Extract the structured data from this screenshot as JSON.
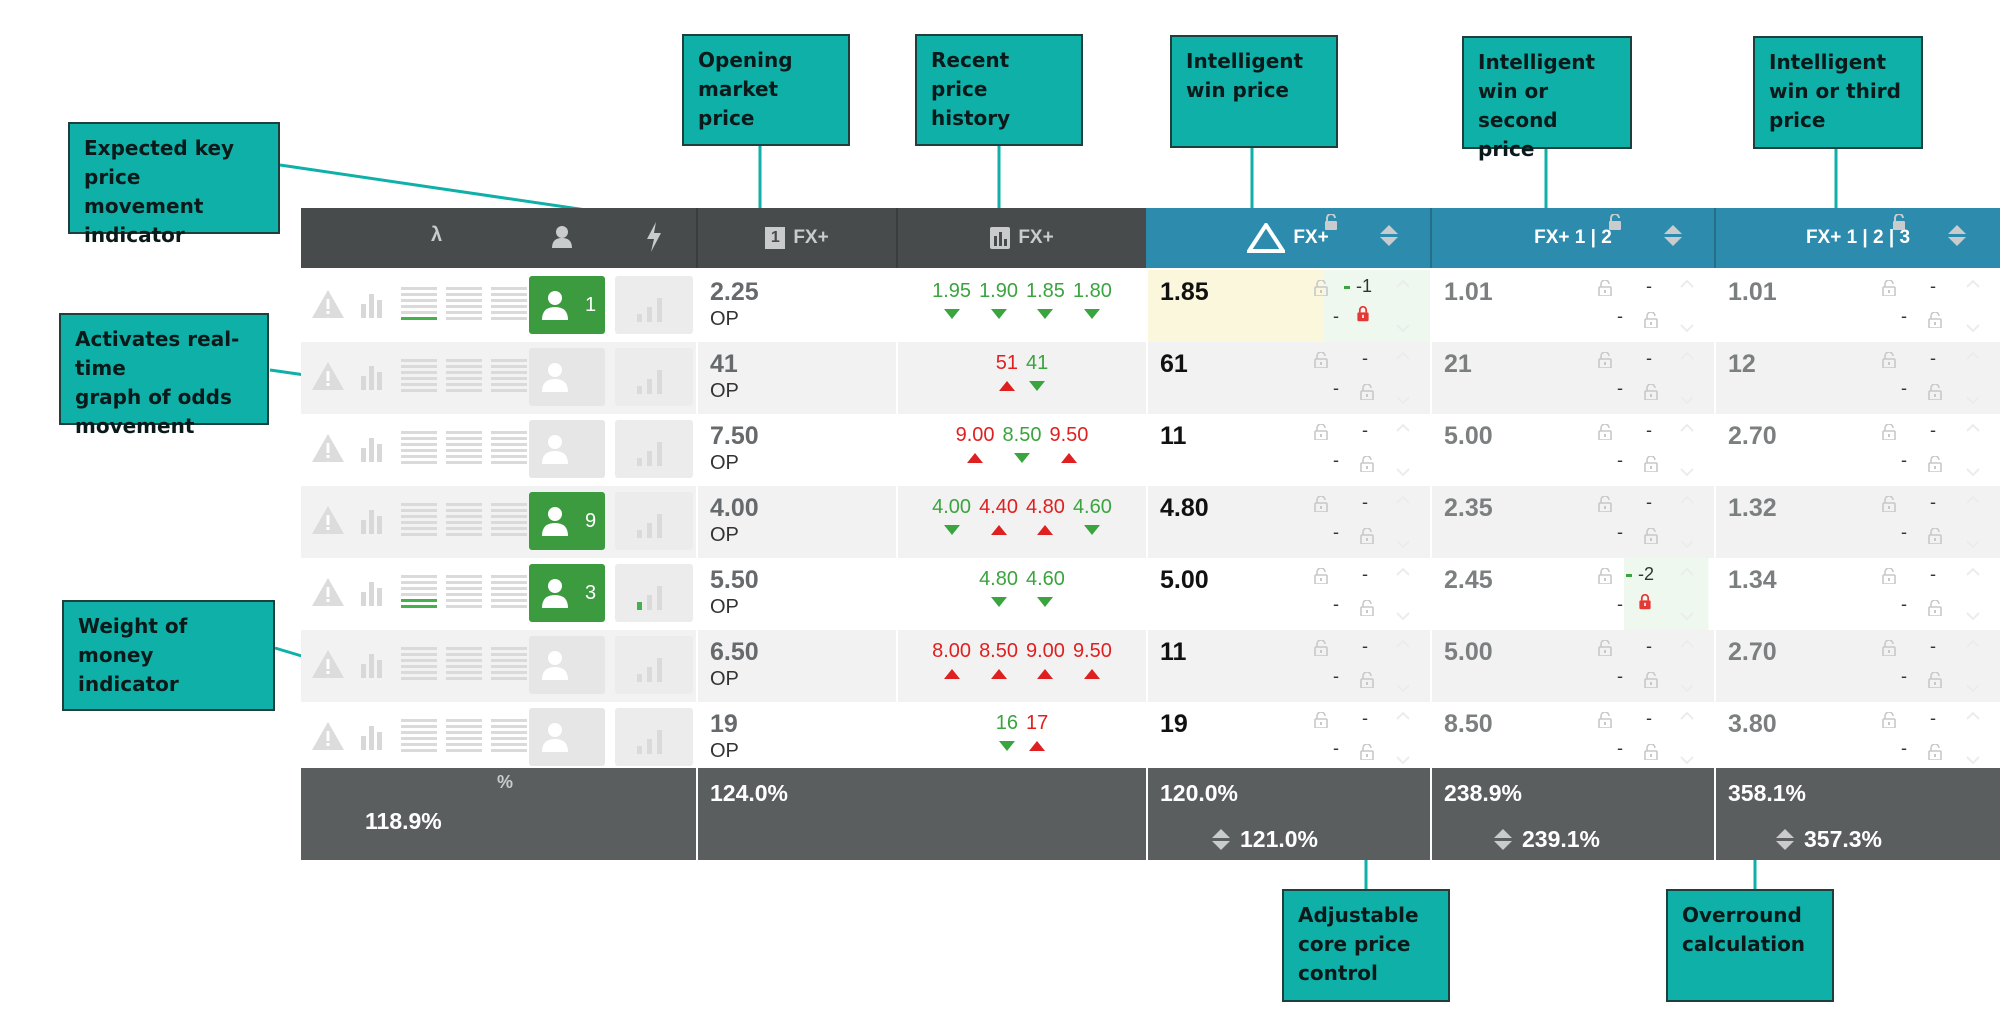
{
  "callouts": [
    {
      "key": "key-price-movement",
      "text": "Expected key price\nmovement indicator"
    },
    {
      "key": "realtime-graph",
      "text": "Activates real-time\ngraph of odds\nmovement"
    },
    {
      "key": "weight-of-money",
      "text": "Weight of money\nindicator"
    },
    {
      "key": "opening-market-price",
      "text": "Opening\nmarket price"
    },
    {
      "key": "recent-price-history",
      "text": "Recent price\nhistory"
    },
    {
      "key": "intelligent-win-price",
      "text": "Intelligent\nwin price"
    },
    {
      "key": "win-or-second",
      "text": "Intelligent\nwin or second\nprice"
    },
    {
      "key": "win-or-third",
      "text": "Intelligent\nwin or third\nprice"
    },
    {
      "key": "adjustable-core",
      "text": "Adjustable\ncore price\ncontrol"
    },
    {
      "key": "overround",
      "text": "Overround\ncalculation"
    }
  ],
  "headers": {
    "lambda": "λ",
    "op_badge": "1",
    "op_label": "FX+",
    "history_label": "FX+",
    "win_label": "FX+",
    "second_label": "FX+ 1 | 2",
    "third_label": "FX+ 1 | 2 | 3"
  },
  "rows": [
    {
      "tips": "1",
      "op": "2.25",
      "op_label": "OP",
      "history": [
        {
          "v": "1.95",
          "dir": "down"
        },
        {
          "v": "1.90",
          "dir": "down"
        },
        {
          "v": "1.85",
          "dir": "down"
        },
        {
          "v": "1.80",
          "dir": "down"
        }
      ],
      "win": "1.85",
      "second": "1.01",
      "third": "1.01",
      "win_adj": "-1",
      "second_adj": ""
    },
    {
      "tips": "",
      "op": "41",
      "op_label": "OP",
      "history": [
        {
          "v": "51",
          "dir": "up"
        },
        {
          "v": "41",
          "dir": "down"
        }
      ],
      "win": "61",
      "second": "21",
      "third": "12",
      "win_adj": "",
      "second_adj": ""
    },
    {
      "tips": "",
      "op": "7.50",
      "op_label": "OP",
      "history": [
        {
          "v": "9.00",
          "dir": "up"
        },
        {
          "v": "8.50",
          "dir": "down"
        },
        {
          "v": "9.50",
          "dir": "up"
        }
      ],
      "win": "11",
      "second": "5.00",
      "third": "2.70",
      "win_adj": "",
      "second_adj": ""
    },
    {
      "tips": "9",
      "op": "4.00",
      "op_label": "OP",
      "history": [
        {
          "v": "4.00",
          "dir": "down"
        },
        {
          "v": "4.40",
          "dir": "up"
        },
        {
          "v": "4.80",
          "dir": "up"
        },
        {
          "v": "4.60",
          "dir": "down"
        }
      ],
      "win": "4.80",
      "second": "2.35",
      "third": "1.32",
      "win_adj": "",
      "second_adj": ""
    },
    {
      "tips": "3",
      "op": "5.50",
      "op_label": "OP",
      "history": [
        {
          "v": "4.80",
          "dir": "down"
        },
        {
          "v": "4.60",
          "dir": "down"
        }
      ],
      "win": "5.00",
      "second": "2.45",
      "third": "1.34",
      "win_adj": "",
      "second_adj": "-2"
    },
    {
      "tips": "",
      "op": "6.50",
      "op_label": "OP",
      "history": [
        {
          "v": "8.00",
          "dir": "up"
        },
        {
          "v": "8.50",
          "dir": "up"
        },
        {
          "v": "9.00",
          "dir": "up"
        },
        {
          "v": "9.50",
          "dir": "up"
        }
      ],
      "win": "11",
      "second": "5.00",
      "third": "2.70",
      "win_adj": "",
      "second_adj": ""
    },
    {
      "tips": "",
      "op": "19",
      "op_label": "OP",
      "history": [
        {
          "v": "16",
          "dir": "down"
        },
        {
          "v": "17",
          "dir": "up"
        }
      ],
      "win": "19",
      "second": "8.50",
      "third": "3.80",
      "win_adj": "",
      "second_adj": ""
    }
  ],
  "dash": "-",
  "footer": {
    "percent_symbol": "%",
    "runner_total": "118.9%",
    "op_total": "124.0%",
    "win_total": "120.0%",
    "win_adjusted": "121.0%",
    "second_total": "238.9%",
    "second_adjusted": "239.1%",
    "third_total": "358.1%",
    "third_adjusted": "357.3%"
  },
  "colors": {
    "callout": "#0fb0a7",
    "header_dark": "#474b4c",
    "header_blue": "#2d8cad",
    "footer": "#5a5e5f",
    "price_up": "#e02020",
    "price_down": "#3aa43f",
    "tipster_green": "#3c9a3f",
    "lock_red": "#e53935"
  },
  "icons": [
    "lambda-icon",
    "person-icon",
    "lightning-icon",
    "warning-icon",
    "bar-chart-icon",
    "money-bars-icon",
    "person-icon",
    "signal-bars-icon",
    "lock-open-icon",
    "lock-closed-icon",
    "chart-icon",
    "fx-triangle-icon",
    "sort-arrows-icon"
  ]
}
